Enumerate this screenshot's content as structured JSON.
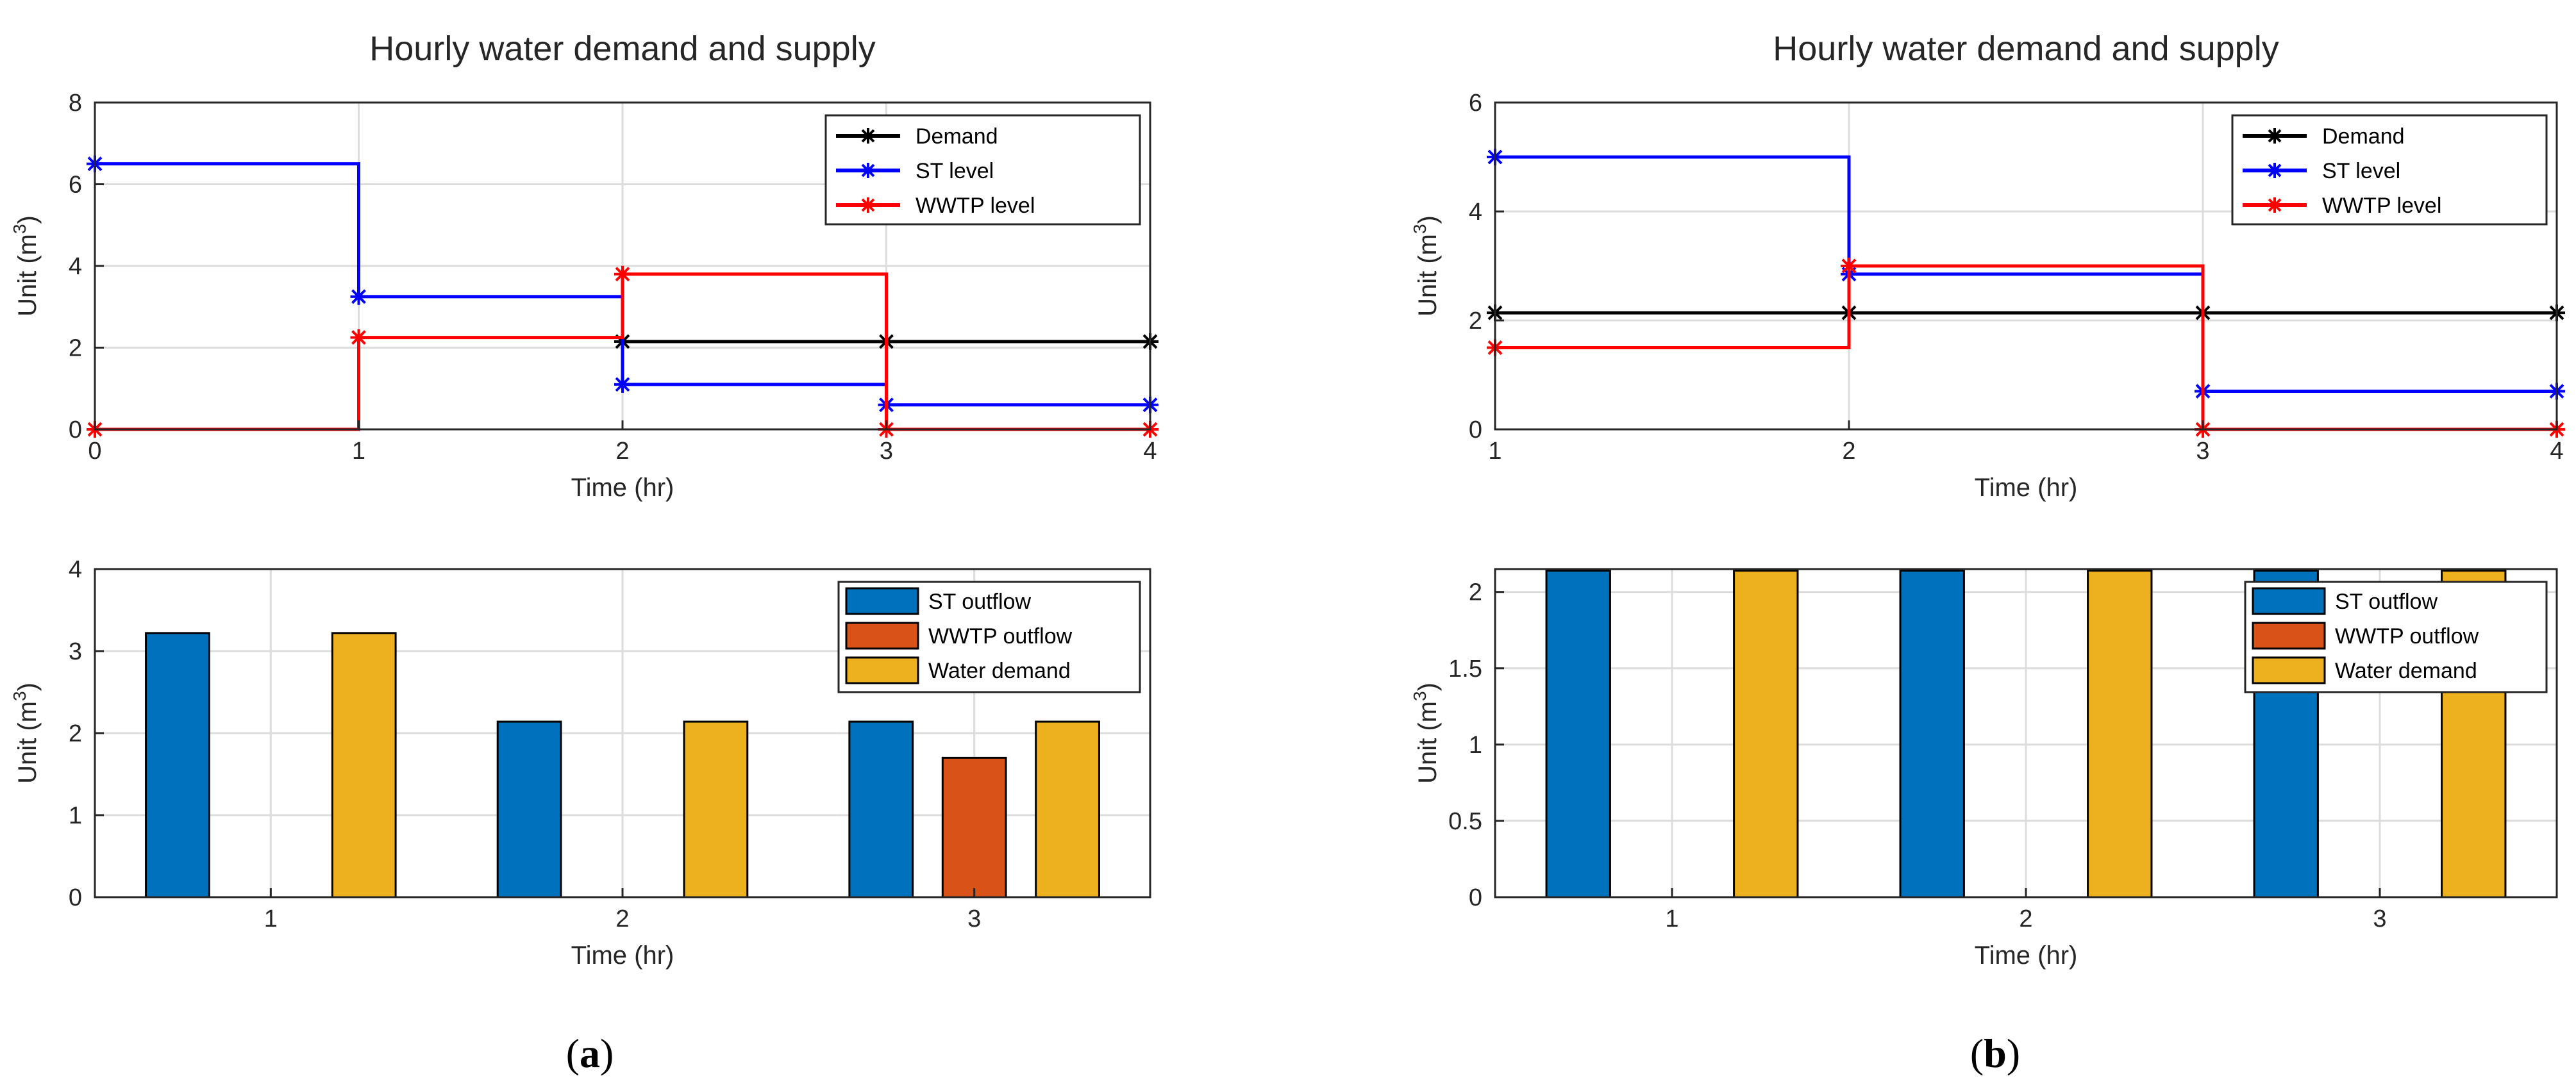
{
  "chart_data": [
    {
      "id": "a-top",
      "type": "line",
      "step": true,
      "title": "Hourly water demand and supply",
      "xlabel": "Time (hr)",
      "ylabel": "Unit (m3)",
      "xlim": [
        0,
        4
      ],
      "ylim": [
        0,
        8
      ],
      "xticks": [
        0,
        1,
        2,
        3,
        4
      ],
      "yticks": [
        0,
        2,
        4,
        6,
        8
      ],
      "grid": true,
      "legend_position": "top-right",
      "series": [
        {
          "name": "Demand",
          "color": "#000000",
          "x": [
            2,
            3,
            4
          ],
          "y": [
            2.15,
            2.15,
            2.15
          ]
        },
        {
          "name": "ST level",
          "color": "#0000ff",
          "x": [
            0,
            1,
            2,
            3,
            4
          ],
          "y": [
            6.5,
            3.25,
            1.1,
            0.6,
            0.6
          ]
        },
        {
          "name": "WWTP level",
          "color": "#ff0000",
          "x": [
            0,
            1,
            2,
            3,
            4
          ],
          "y": [
            0,
            2.25,
            3.8,
            0,
            0
          ]
        }
      ]
    },
    {
      "id": "a-bottom",
      "type": "bar",
      "xlabel": "Time (hr)",
      "ylabel": "Unit (m3)",
      "categories": [
        "1",
        "2",
        "3"
      ],
      "ylim": [
        0,
        4
      ],
      "yticks": [
        0,
        1,
        2,
        3,
        4
      ],
      "grid": true,
      "legend_position": "top-right",
      "series": [
        {
          "name": "ST outflow",
          "color": "#0072bd",
          "values": [
            3.22,
            2.14,
            2.14
          ]
        },
        {
          "name": "WWTP outflow",
          "color": "#d95319",
          "values": [
            0,
            0,
            1.7
          ]
        },
        {
          "name": "Water demand",
          "color": "#edb120",
          "values": [
            3.22,
            2.14,
            2.14
          ]
        }
      ]
    },
    {
      "id": "b-top",
      "type": "line",
      "step": true,
      "title": "Hourly water demand and supply",
      "xlabel": "Time (hr)",
      "ylabel": "Unit (m3)",
      "xlim": [
        1,
        4
      ],
      "ylim": [
        0,
        6
      ],
      "xticks": [
        1,
        2,
        3,
        4
      ],
      "yticks": [
        0,
        2,
        4,
        6
      ],
      "grid": true,
      "legend_position": "top-right",
      "series": [
        {
          "name": "Demand",
          "color": "#000000",
          "x": [
            1,
            2,
            3,
            4
          ],
          "y": [
            2.14,
            2.14,
            2.14,
            2.14
          ]
        },
        {
          "name": "ST level",
          "color": "#0000ff",
          "x": [
            1,
            2,
            3,
            4
          ],
          "y": [
            5.0,
            2.85,
            0.7,
            0.7
          ]
        },
        {
          "name": "WWTP level",
          "color": "#ff0000",
          "x": [
            1,
            2,
            3,
            4
          ],
          "y": [
            1.5,
            3.0,
            0,
            0
          ]
        }
      ]
    },
    {
      "id": "b-bottom",
      "type": "bar",
      "xlabel": "Time (hr)",
      "ylabel": "Unit (m3)",
      "categories": [
        "1",
        "2",
        "3"
      ],
      "ylim": [
        0,
        2.15
      ],
      "yticks": [
        0,
        0.5,
        1,
        1.5,
        2
      ],
      "grid": true,
      "legend_position": "top-right",
      "series": [
        {
          "name": "ST outflow",
          "color": "#0072bd",
          "values": [
            2.14,
            2.14,
            2.14
          ]
        },
        {
          "name": "WWTP outflow",
          "color": "#d95319",
          "values": [
            0,
            0,
            0
          ]
        },
        {
          "name": "Water demand",
          "color": "#edb120",
          "values": [
            2.14,
            2.14,
            2.14
          ]
        }
      ]
    }
  ],
  "panel_labels": [
    "a",
    "b"
  ]
}
